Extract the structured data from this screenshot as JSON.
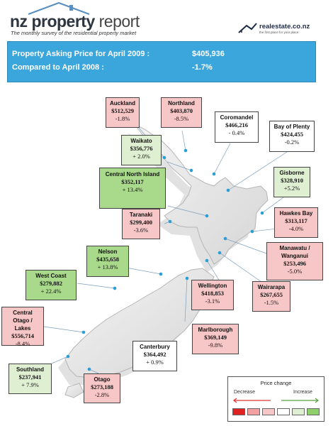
{
  "header": {
    "brand_bold": "nz property",
    "brand_light": "report",
    "subtitle": "The monthly survey of the residential property market",
    "logo_text": "realestate.co.nz",
    "logo_tagline": "the first place for your place"
  },
  "banner": {
    "line1_label": "Property Asking Price for April 2009  :",
    "line1_value": "$405,936",
    "line2_label": "Compared to April 2008 :",
    "line2_value": "-1.7%"
  },
  "regions": [
    {
      "name": "Auckland",
      "price": "$512,529",
      "change": "-1.8%",
      "status": "decrease"
    },
    {
      "name": "Northland",
      "price": "$403,870",
      "change": "-8.5%",
      "status": "decrease"
    },
    {
      "name": "Coromandel",
      "price": "$466,216",
      "change": "- 0.4%",
      "status": "neutral"
    },
    {
      "name": "Bay of Plenty",
      "price": "$424,455",
      "change": "-0.2%",
      "status": "neutral"
    },
    {
      "name": "Waikato",
      "price": "$356,776",
      "change": "+ 2.0%",
      "status": "increase"
    },
    {
      "name": "Central North Island",
      "price": "$352,117",
      "change": "+ 13.4%",
      "status": "increase-strong"
    },
    {
      "name": "Gisborne",
      "price": "$328,910",
      "change": "+5.2%",
      "status": "increase"
    },
    {
      "name": "Taranaki",
      "price": "$299,400",
      "change": "-3.6%",
      "status": "decrease"
    },
    {
      "name": "Hawkes Bay",
      "price": "$313,117",
      "change": "-4.0%",
      "status": "decrease"
    },
    {
      "name": "Nelson",
      "price": "$435,658",
      "change": "+ 13.8%",
      "status": "increase-strong"
    },
    {
      "name": "Manawatu / Wanganui",
      "price": "$253,496",
      "change": "-5.0%",
      "status": "decrease"
    },
    {
      "name": "West Coast",
      "price": "$279,882",
      "change": "+ 22.4%",
      "status": "increase-strong"
    },
    {
      "name": "Wellington",
      "price": "$418,853",
      "change": "-3.1%",
      "status": "decrease"
    },
    {
      "name": "Wairarapa",
      "price": "$267,655",
      "change": "-1.5%",
      "status": "decrease"
    },
    {
      "name": "Central Otago / Lakes",
      "price": "$556,714",
      "change": "-8.4%",
      "status": "decrease"
    },
    {
      "name": "Marlborough",
      "price": "$369,149",
      "change": "-9.8%",
      "status": "decrease"
    },
    {
      "name": "Canterbury",
      "price": "$364,492",
      "change": "+ 0.9%",
      "status": "neutral"
    },
    {
      "name": "Southland",
      "price": "$237,941",
      "change": "+ 7.9%",
      "status": "increase"
    },
    {
      "name": "Otago",
      "price": "$273,188",
      "change": "-2.8%",
      "status": "decrease"
    }
  ],
  "legend": {
    "title": "Price change",
    "decrease_label": "Decrease",
    "increase_label": "Increase"
  },
  "colors": {
    "banner": "#3aa6dc",
    "decrease": "#f7c6c6",
    "neutral": "#ffffff",
    "increase": "#dff0d2",
    "increase_strong": "#a9d98b",
    "connector_dot": "#2a9fd6"
  }
}
